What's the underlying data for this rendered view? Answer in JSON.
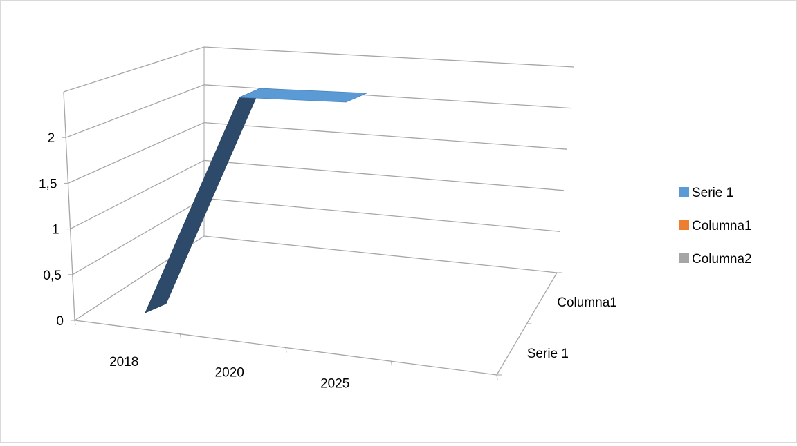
{
  "chart_data": {
    "type": "line",
    "subtype": "3d-line",
    "title": "",
    "xlabel": "",
    "ylabel": "",
    "categories": [
      "2018",
      "2020",
      "2025"
    ],
    "series": [
      {
        "name": "Serie 1",
        "values": [
          0,
          2,
          2
        ]
      },
      {
        "name": "Columna1",
        "values": [
          null,
          null,
          null
        ]
      },
      {
        "name": "Columna2",
        "values": [
          null,
          null,
          null
        ]
      }
    ],
    "depth_labels": [
      "Serie 1",
      "Columna1"
    ],
    "y_ticks": [
      "0",
      "0,5",
      "1",
      "1,5",
      "2"
    ],
    "ylim": [
      0,
      2.5
    ],
    "grid": true,
    "legend_position": "right",
    "colors": {
      "Serie 1": "#5b9bd5",
      "Columna1": "#ed7d31",
      "Columna2": "#a5a5a5",
      "ribbon_side": "#2e4a6b",
      "gridline": "#a6a6a6"
    }
  }
}
